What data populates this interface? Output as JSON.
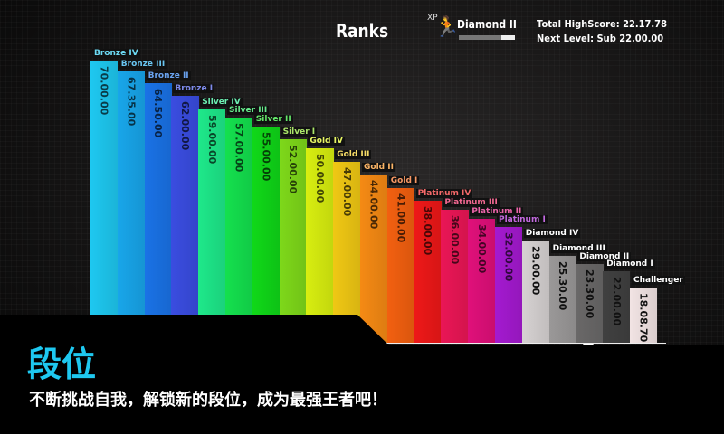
{
  "header": {
    "title": "Ranks",
    "xp_label": "XP",
    "current_rank": "Diamond II",
    "xp_progress": 0.25,
    "total_highscore": "Total HighScore: 22.17.78",
    "next_level": "Next Level: Sub 22.00.00"
  },
  "chart_data": {
    "type": "bar",
    "categories": [
      "Bronze IV",
      "Bronze III",
      "Bronze II",
      "Bronze I",
      "Silver IV",
      "Silver III",
      "Silver II",
      "Silver I",
      "Gold IV",
      "Gold III",
      "Gold II",
      "Gold I",
      "Platinum IV",
      "Platinum III",
      "Platinum II",
      "Platinum I",
      "Diamond IV",
      "Diamond III",
      "Diamond II",
      "Diamond I",
      "Challenger"
    ],
    "value_labels": [
      "70.00.00",
      "67.35.00",
      "64.50.00",
      "62.00.00",
      "59.00.00",
      "57.00.00",
      "55.00.00",
      "52.00.00",
      "50.00.00",
      "47.00.00",
      "44.00.00",
      "41.00.00",
      "38.00.00",
      "36.00.00",
      "34.00.00",
      "32.00.00",
      "29.00.00",
      "25.30.00",
      "23.30.00",
      "22.00.00",
      "18.08.70"
    ],
    "values": [
      70,
      67.58,
      64.83,
      62,
      59,
      57,
      55,
      52,
      50,
      47,
      44,
      41,
      38,
      36,
      34,
      32,
      29,
      25.5,
      23.5,
      22,
      18.15
    ],
    "colors": [
      "#1ec8f0",
      "#18a6ea",
      "#1a72e6",
      "#3a4de0",
      "#1ee88a",
      "#14e04e",
      "#10d818",
      "#7ed81a",
      "#d8ee10",
      "#f0c814",
      "#f58a14",
      "#f26010",
      "#ee1818",
      "#ea1656",
      "#e0107a",
      "#a41ad0",
      "#d6d2d2",
      "#9a9898",
      "#6a6868",
      "#404040",
      "#f2e4e4"
    ],
    "current_rank_marker": "Diamond II"
  },
  "banner": {
    "headline": "段位",
    "subtitle": "不断挑战自我，解锁新的段位，成为最强王者吧！"
  }
}
